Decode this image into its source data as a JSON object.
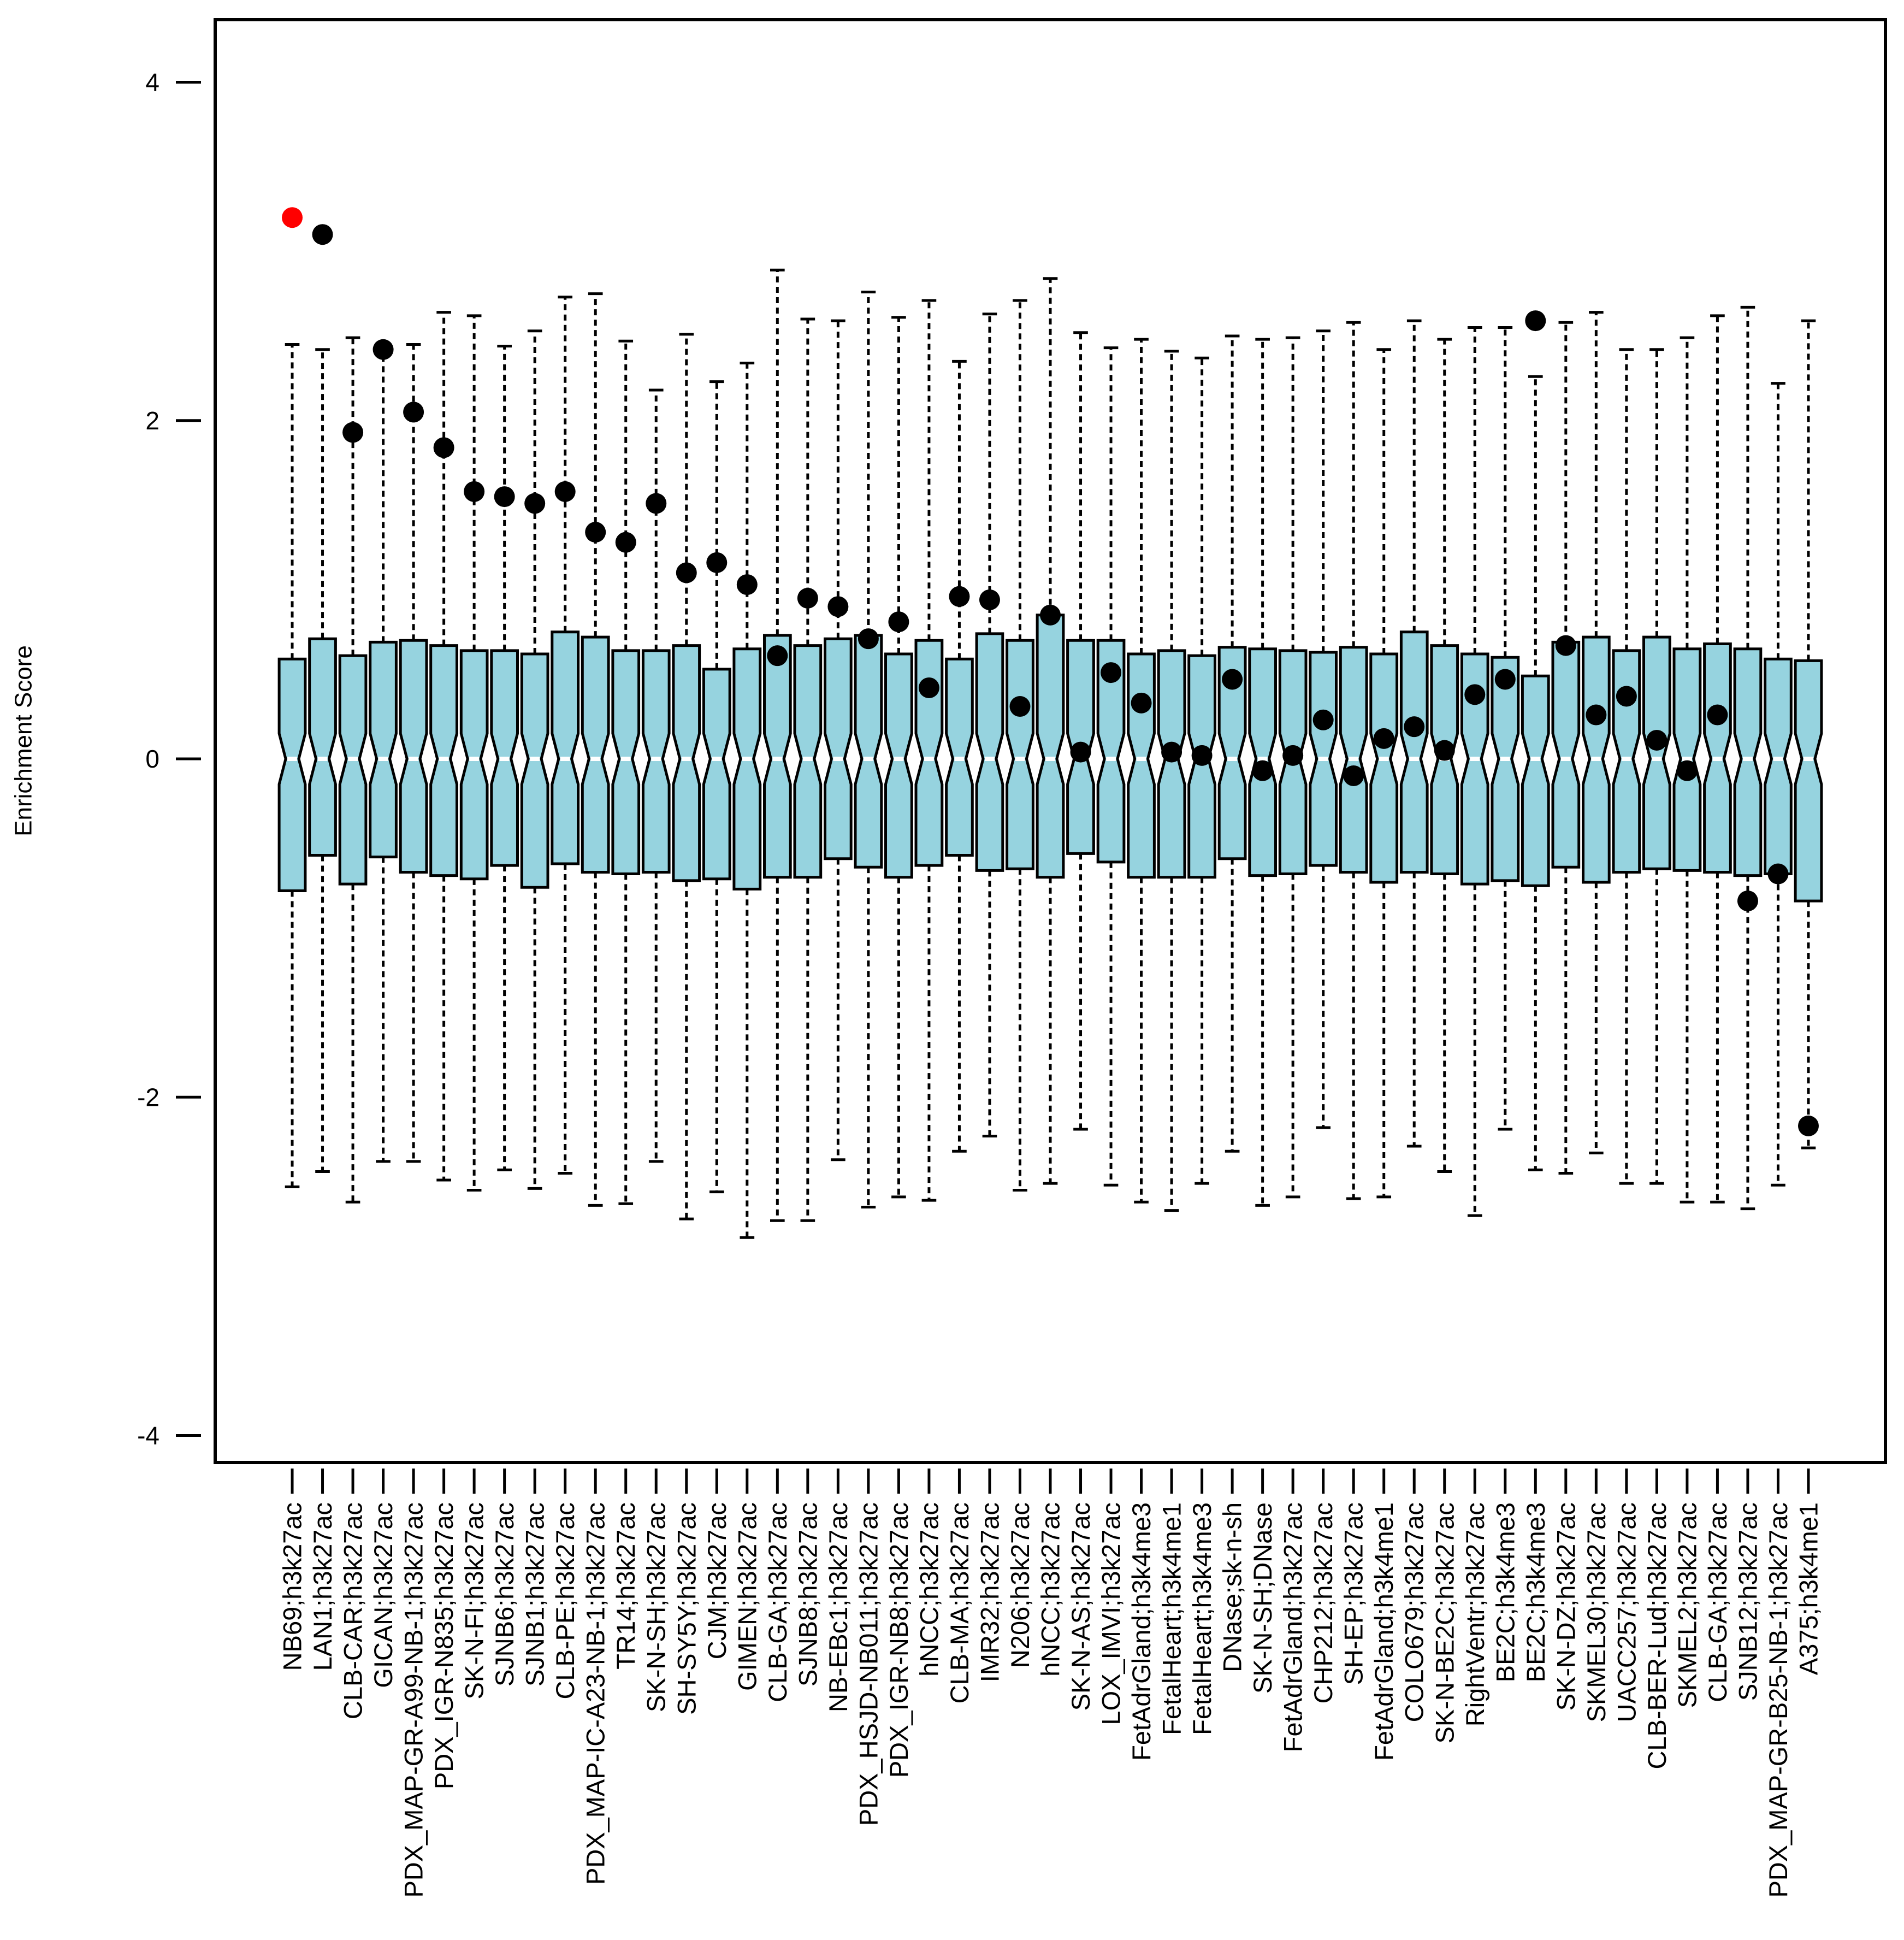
{
  "chart_data": {
    "type": "boxplot",
    "ylabel": "Enrichment Score",
    "xlim": [
      -1.54,
      53.54
    ],
    "ylim": [
      -4.16,
      4.37
    ],
    "grid": false,
    "notch": true,
    "notch_extent": 0.15,
    "yticks": [
      {
        "value": 4,
        "label": "4"
      },
      {
        "value": 2,
        "label": "2"
      },
      {
        "value": 0,
        "label": "0"
      },
      {
        "value": -2,
        "label": "-2"
      },
      {
        "value": -4,
        "label": "-4"
      }
    ],
    "categories": [
      "NB69;h3k27ac",
      "LAN1;h3k27ac",
      "CLB-CAR;h3k27ac",
      "GICAN;h3k27ac",
      "PDX_MAP-GR-A99-NB-1;h3k27ac",
      "PDX_IGR-N835;h3k27ac",
      "SK-N-FI;h3k27ac",
      "SJNB6;h3k27ac",
      "SJNB1;h3k27ac",
      "CLB-PE;h3k27ac",
      "PDX_MAP-IC-A23-NB-1;h3k27ac",
      "TR14;h3k27ac",
      "SK-N-SH;h3k27ac",
      "SH-SY5Y;h3k27ac",
      "CJM;h3k27ac",
      "GIMEN;h3k27ac",
      "CLB-GA;h3k27ac",
      "SJNB8;h3k27ac",
      "NB-EBc1;h3k27ac",
      "PDX_HSJD-NB011;h3k27ac",
      "PDX_IGR-NB8;h3k27ac",
      "hNCC;h3k27ac",
      "CLB-MA;h3k27ac",
      "IMR32;h3k27ac",
      "N206;h3k27ac",
      "hNCC;h3k27ac",
      "SK-N-AS;h3k27ac",
      "LOX_IMVI;h3k27ac",
      "FetAdrGland;h3k4me3",
      "FetalHeart;h3k4me1",
      "FetalHeart;h3k4me3",
      "DNase;sk-n-sh",
      "SK-N-SH;DNase",
      "FetAdrGland;h3k27ac",
      "CHP212;h3k27ac",
      "SH-EP;h3k27ac",
      "FetAdrGland;h3k4me1",
      "COLO679;h3k27ac",
      "SK-N-BE2C;h3k27ac",
      "RightVentr;h3k27ac",
      "BE2C;h3k4me3",
      "BE2C;h3k4me3",
      "SK-N-DZ;h3k27ac",
      "SKMEL30;h3k27ac",
      "UACC257;h3k27ac",
      "CLB-BER-Lud;h3k27ac",
      "SKMEL2;h3k27ac",
      "CLB-GA;h3k27ac",
      "SJNB12;h3k27ac",
      "PDX_MAP-GR-B25-NB-1;h3k27ac",
      "A375;h3k4me1"
    ],
    "stats": {
      "whisker_high": [
        2.45,
        2.42,
        2.49,
        2.44,
        2.45,
        2.64,
        2.62,
        2.44,
        2.53,
        2.73,
        2.75,
        2.47,
        2.18,
        2.51,
        2.23,
        2.34,
        2.89,
        2.6,
        2.59,
        2.76,
        2.61,
        2.71,
        2.35,
        2.63,
        2.71,
        2.84,
        2.52,
        2.43,
        2.48,
        2.41,
        2.37,
        2.5,
        2.48,
        2.49,
        2.53,
        2.58,
        2.42,
        2.59,
        2.48,
        2.55,
        2.55,
        2.26,
        2.58,
        2.64,
        2.42,
        2.42,
        2.49,
        2.62,
        2.67,
        2.22,
        2.59
      ],
      "q3": [
        0.59,
        0.71,
        0.61,
        0.69,
        0.7,
        0.67,
        0.64,
        0.64,
        0.62,
        0.75,
        0.72,
        0.64,
        0.64,
        0.67,
        0.53,
        0.65,
        0.73,
        0.67,
        0.71,
        0.73,
        0.62,
        0.7,
        0.59,
        0.74,
        0.7,
        0.85,
        0.7,
        0.7,
        0.62,
        0.64,
        0.61,
        0.66,
        0.65,
        0.64,
        0.63,
        0.66,
        0.62,
        0.75,
        0.67,
        0.62,
        0.6,
        0.49,
        0.69,
        0.72,
        0.64,
        0.72,
        0.65,
        0.68,
        0.65,
        0.59,
        0.58
      ],
      "median": [
        0,
        0,
        0,
        0,
        0,
        0,
        0,
        0,
        0,
        0,
        0,
        0,
        0,
        0,
        0,
        0,
        0,
        0,
        0,
        0,
        0,
        0,
        0,
        0,
        0,
        0,
        0,
        0,
        0,
        0,
        0,
        0,
        0,
        0,
        0,
        0,
        0,
        0,
        0,
        0,
        0,
        0,
        0,
        0,
        0,
        0,
        0,
        0,
        0,
        0,
        0
      ],
      "q1": [
        -0.78,
        -0.57,
        -0.74,
        -0.58,
        -0.67,
        -0.69,
        -0.71,
        -0.63,
        -0.76,
        -0.62,
        -0.67,
        -0.68,
        -0.67,
        -0.72,
        -0.71,
        -0.77,
        -0.7,
        -0.7,
        -0.59,
        -0.64,
        -0.7,
        -0.63,
        -0.57,
        -0.66,
        -0.65,
        -0.7,
        -0.56,
        -0.61,
        -0.7,
        -0.7,
        -0.7,
        -0.59,
        -0.69,
        -0.68,
        -0.63,
        -0.67,
        -0.73,
        -0.67,
        -0.68,
        -0.74,
        -0.72,
        -0.75,
        -0.64,
        -0.73,
        -0.67,
        -0.65,
        -0.66,
        -0.67,
        -0.69,
        -0.68,
        -0.84
      ],
      "whisker_low": [
        -2.53,
        -2.44,
        -2.62,
        -2.38,
        -2.38,
        -2.49,
        -2.55,
        -2.43,
        -2.54,
        -2.45,
        -2.64,
        -2.63,
        -2.38,
        -2.72,
        -2.56,
        -2.83,
        -2.73,
        -2.73,
        -2.37,
        -2.65,
        -2.59,
        -2.61,
        -2.32,
        -2.23,
        -2.55,
        -2.51,
        -2.19,
        -2.52,
        -2.62,
        -2.67,
        -2.51,
        -2.32,
        -2.64,
        -2.59,
        -2.18,
        -2.6,
        -2.59,
        -2.29,
        -2.44,
        -2.7,
        -2.19,
        -2.43,
        -2.45,
        -2.33,
        -2.51,
        -2.51,
        -2.62,
        -2.62,
        -2.66,
        -2.52,
        -2.3
      ]
    },
    "points": [
      3.2,
      3.1,
      1.93,
      2.42,
      2.05,
      1.84,
      1.58,
      1.55,
      1.51,
      1.58,
      1.34,
      1.28,
      1.51,
      1.1,
      1.16,
      1.03,
      0.61,
      0.95,
      0.9,
      0.71,
      0.81,
      0.42,
      0.96,
      0.94,
      0.31,
      0.85,
      0.04,
      0.51,
      0.33,
      0.04,
      0.02,
      0.47,
      -0.07,
      0.02,
      0.23,
      -0.1,
      0.12,
      0.19,
      0.05,
      0.38,
      0.47,
      2.59,
      0.67,
      0.26,
      0.37,
      0.11,
      -0.07,
      0.26,
      -0.84,
      -0.68,
      -2.17
    ],
    "highlight_index": 0,
    "colors": {
      "box_fill": "#96d3df",
      "outline": "#000000",
      "median": "#ffffff",
      "point": "#000000",
      "highlight_point": "#ff0000"
    }
  }
}
